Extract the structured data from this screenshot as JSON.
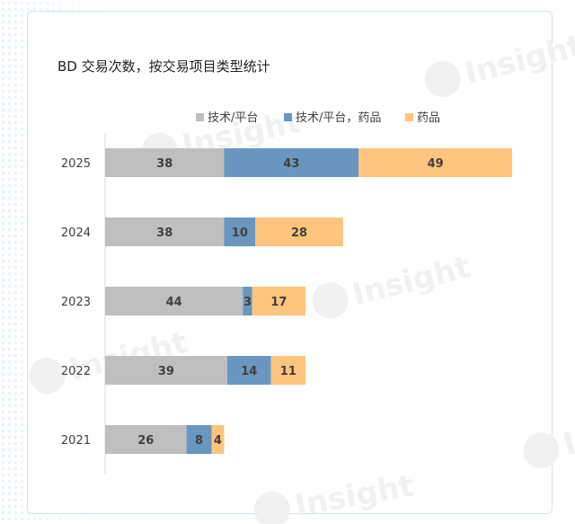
{
  "chart_data": {
    "type": "bar",
    "orientation": "horizontal",
    "stacked": true,
    "title": "BD 交易次数，按交易项目类型统计",
    "categories": [
      "2025",
      "2024",
      "2023",
      "2022",
      "2021"
    ],
    "series": [
      {
        "name": "技术/平台",
        "color": "#bfbfbf",
        "values": [
          38,
          38,
          44,
          39,
          26
        ]
      },
      {
        "name": "技术/平台，药品",
        "color": "#6a97bf",
        "values": [
          43,
          10,
          3,
          14,
          8
        ]
      },
      {
        "name": "药品",
        "color": "#ffc47d",
        "values": [
          49,
          28,
          17,
          11,
          4
        ]
      }
    ],
    "xlim": [
      0,
      130
    ],
    "legend_position": "top",
    "grid": false
  },
  "watermark": "Insight"
}
